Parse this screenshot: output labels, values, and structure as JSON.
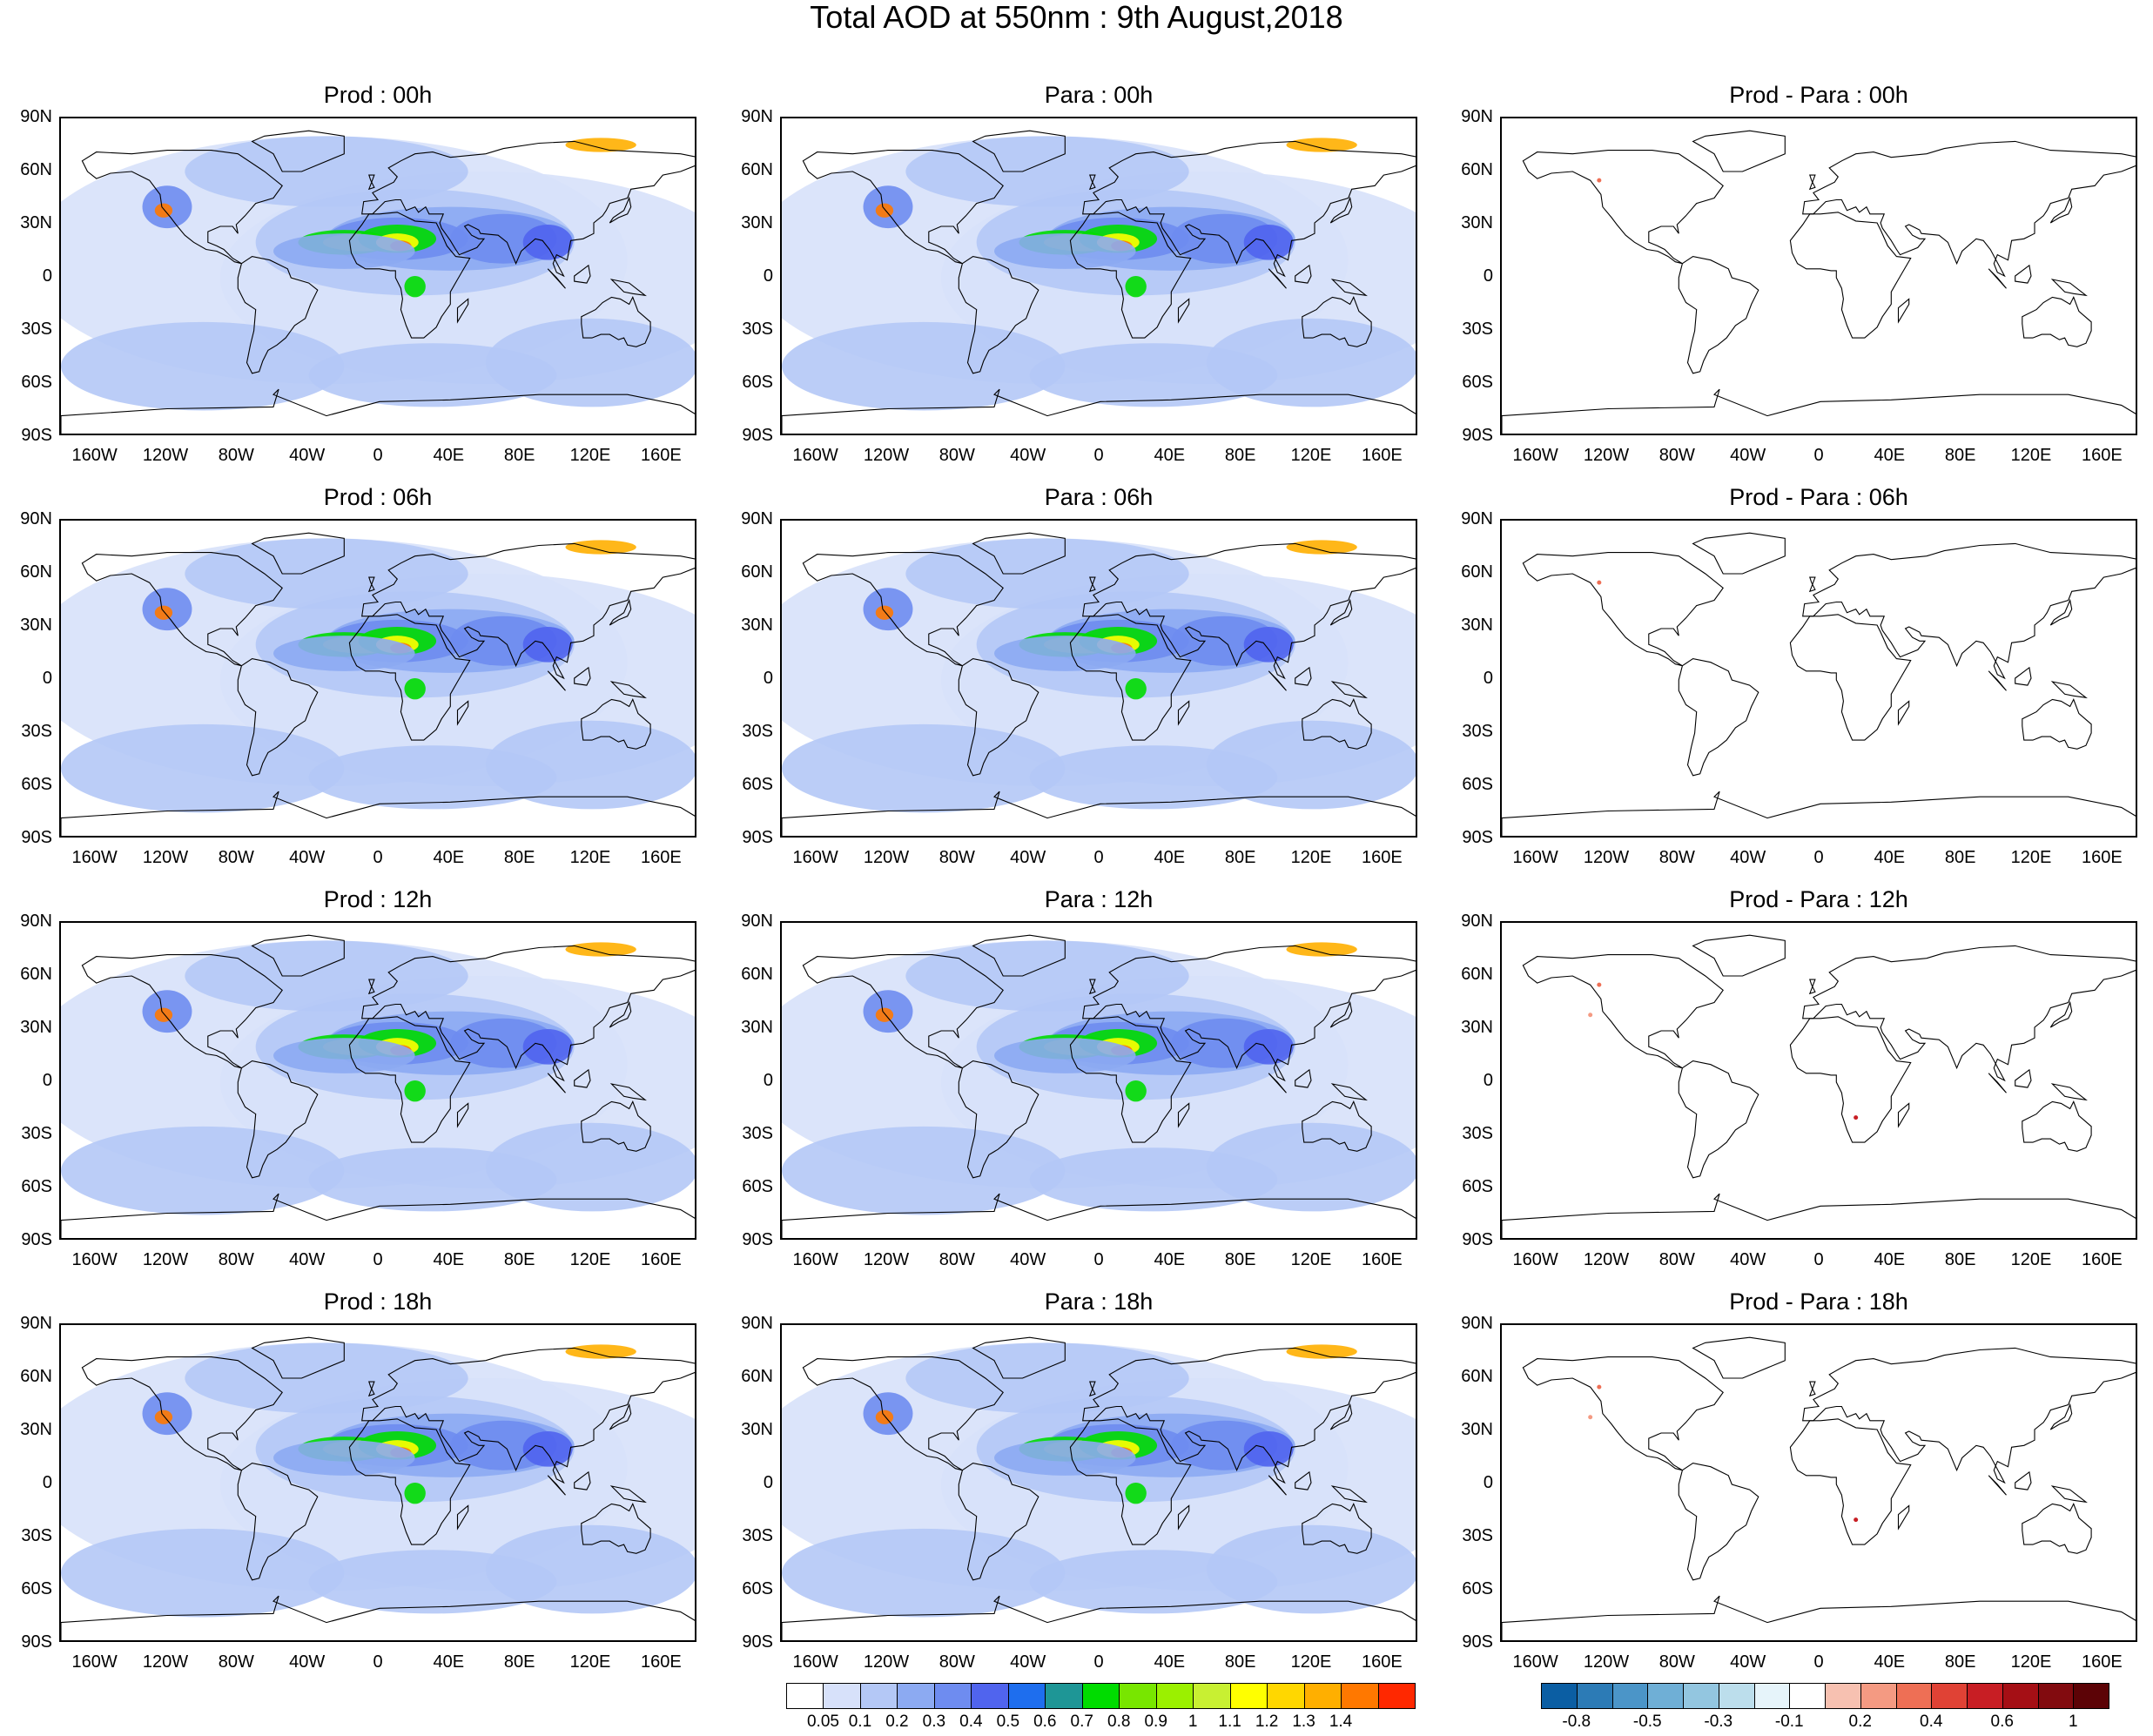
{
  "title": "Total AOD at 550nm : 9th August,2018",
  "lat_labels": [
    "90N",
    "60N",
    "30N",
    "0",
    "30S",
    "60S",
    "90S"
  ],
  "lon_labels": [
    "160W",
    "120W",
    "80W",
    "40W",
    "0",
    "40E",
    "80E",
    "120E",
    "160E"
  ],
  "panels": [
    {
      "title": "Prod : 00h",
      "kind": "aod"
    },
    {
      "title": "Para : 00h",
      "kind": "aod"
    },
    {
      "title": "Prod - Para : 00h",
      "kind": "diff"
    },
    {
      "title": "Prod : 06h",
      "kind": "aod"
    },
    {
      "title": "Para : 06h",
      "kind": "aod"
    },
    {
      "title": "Prod - Para : 06h",
      "kind": "diff"
    },
    {
      "title": "Prod : 12h",
      "kind": "aod"
    },
    {
      "title": "Para : 12h",
      "kind": "aod"
    },
    {
      "title": "Prod - Para : 12h",
      "kind": "diff"
    },
    {
      "title": "Prod : 18h",
      "kind": "aod"
    },
    {
      "title": "Para : 18h",
      "kind": "aod"
    },
    {
      "title": "Prod - Para : 18h",
      "kind": "diff"
    }
  ],
  "aod_colorbar": {
    "colors": [
      "#ffffff",
      "#d7e1fa",
      "#b4c8f6",
      "#8caaf2",
      "#6e8cf0",
      "#5064ee",
      "#1e6eee",
      "#1e9696",
      "#00dc00",
      "#78e600",
      "#9bf000",
      "#c8f032",
      "#ffff00",
      "#ffd700",
      "#ffaf00",
      "#ff7800",
      "#ff2800"
    ],
    "labels": [
      "0.05",
      "0.1",
      "0.2",
      "0.3",
      "0.4",
      "0.5",
      "0.6",
      "0.7",
      "0.8",
      "0.9",
      "1",
      "1.1",
      "1.2",
      "1.3",
      "1.4"
    ]
  },
  "diff_colorbar": {
    "colors": [
      "#0b5ea3",
      "#2c7bb6",
      "#4b95c8",
      "#6fafd6",
      "#93c6e0",
      "#bcdeec",
      "#e6f4fa",
      "#ffffff",
      "#f7c1b1",
      "#f49a82",
      "#ee6f55",
      "#e04235",
      "#c81e24",
      "#a50f15",
      "#820b0f",
      "#5c0306"
    ],
    "labels": [
      "-0.8",
      "-0.5",
      "-0.3",
      "-0.1",
      "0.2",
      "0.4",
      "0.6",
      "1"
    ]
  }
}
